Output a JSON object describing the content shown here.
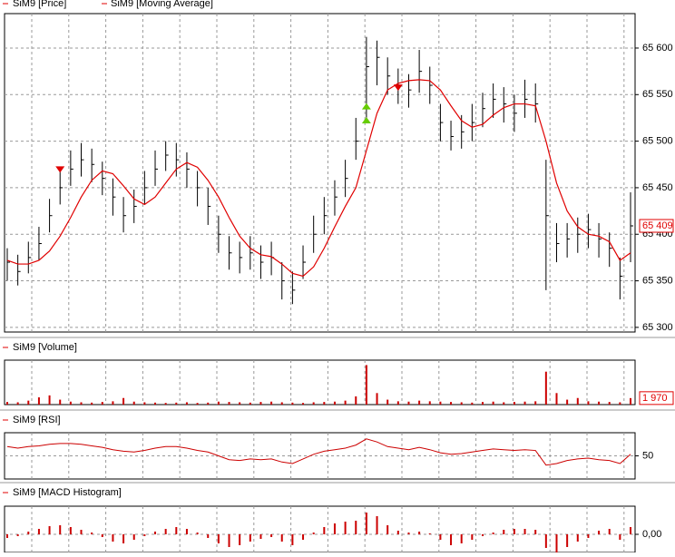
{
  "chart_data": [
    {
      "type": "ohlc",
      "title": "SiM9 [Price]",
      "color": "#000000",
      "high": [
        65385,
        65378,
        65392,
        65408,
        65438,
        65468,
        65490,
        65498,
        65492,
        65478,
        65460,
        65440,
        65448,
        65468,
        65490,
        65500,
        65498,
        65488,
        65468,
        65450,
        65420,
        65398,
        65392,
        65398,
        65388,
        65392,
        65370,
        65360,
        65388,
        65420,
        65440,
        65458,
        65480,
        65525,
        65612,
        65608,
        65590,
        65578,
        65572,
        65598,
        65580,
        65540,
        65522,
        65528,
        65540,
        65552,
        65562,
        65558,
        65550,
        65566,
        65562,
        65480,
        65412,
        65412,
        65418,
        65422,
        65412,
        65402,
        65375,
        65445
      ],
      "low": [
        65350,
        65345,
        65358,
        65372,
        65402,
        65432,
        65452,
        65462,
        65456,
        65442,
        65420,
        65402,
        65412,
        65432,
        65452,
        65468,
        65462,
        65450,
        65430,
        65410,
        65380,
        65362,
        65358,
        65362,
        65352,
        65356,
        65330,
        65325,
        65352,
        65380,
        65400,
        65420,
        65440,
        65480,
        65520,
        65560,
        65550,
        65540,
        65536,
        65552,
        65540,
        65500,
        65490,
        65492,
        65500,
        65515,
        65525,
        65520,
        65510,
        65525,
        65520,
        65340,
        65370,
        65375,
        65380,
        65385,
        65375,
        65365,
        65330,
        65370
      ],
      "close": [
        65370,
        65360,
        65375,
        65390,
        65420,
        65450,
        65470,
        65480,
        65475,
        65460,
        65440,
        65420,
        65430,
        65450,
        65470,
        65485,
        65480,
        65470,
        65450,
        65430,
        65400,
        65380,
        65375,
        65380,
        65370,
        65375,
        65350,
        65340,
        65370,
        65400,
        65420,
        65440,
        65460,
        65500,
        65580,
        65590,
        65570,
        65560,
        65555,
        65575,
        65560,
        65520,
        65505,
        65510,
        65520,
        65535,
        65545,
        65540,
        65530,
        65545,
        65540,
        65420,
        65390,
        65395,
        65400,
        65405,
        65395,
        65385,
        65355,
        65409
      ],
      "series": [
        {
          "name": "SiM9 [Moving Average]",
          "color": "#e00000",
          "values": [
            65372,
            65368,
            65368,
            65372,
            65382,
            65398,
            65418,
            65440,
            65458,
            65468,
            65465,
            65452,
            65438,
            65432,
            65440,
            65455,
            65470,
            65477,
            65472,
            65458,
            65440,
            65418,
            65398,
            65385,
            65378,
            65376,
            65368,
            65358,
            65355,
            65365,
            65385,
            65408,
            65430,
            65450,
            65490,
            65530,
            65555,
            65562,
            65565,
            65566,
            65565,
            65555,
            65538,
            65522,
            65515,
            65518,
            65528,
            65536,
            65540,
            65540,
            65538,
            65500,
            65455,
            65425,
            65408,
            65400,
            65398,
            65392,
            65372,
            65380
          ]
        }
      ],
      "signals": [
        {
          "x": 5,
          "value": 65470,
          "color": "#e00000",
          "direction": "down"
        },
        {
          "x": 34,
          "value": 65537,
          "color": "#66cc00",
          "direction": "up"
        },
        {
          "x": 34,
          "value": 65522,
          "color": "#66cc00",
          "direction": "up"
        },
        {
          "x": 37,
          "value": 65558,
          "color": "#e00000",
          "direction": "down"
        }
      ],
      "last_label": "65 409",
      "ylim": [
        65295,
        65637
      ],
      "yticks": [
        {
          "value": 65300,
          "label": "65 300"
        },
        {
          "value": 65350,
          "label": "65 350"
        },
        {
          "value": 65400,
          "label": "65 400"
        },
        {
          "value": 65450,
          "label": "65 450"
        },
        {
          "value": 65500,
          "label": "65 500"
        },
        {
          "value": 65550,
          "label": "65 550"
        },
        {
          "value": 65600,
          "label": "65 600"
        }
      ],
      "grid": true
    },
    {
      "type": "bar",
      "title": "SiM9 [Volume]",
      "color": "#cc0000",
      "values": [
        800,
        700,
        1200,
        2200,
        2800,
        1500,
        900,
        700,
        600,
        800,
        1000,
        2000,
        900,
        700,
        600,
        500,
        600,
        700,
        500,
        600,
        900,
        800,
        700,
        600,
        800,
        900,
        700,
        600,
        500,
        700,
        800,
        900,
        1200,
        2500,
        12000,
        3500,
        1500,
        1000,
        900,
        1200,
        1000,
        900,
        800,
        700,
        600,
        800,
        900,
        700,
        800,
        900,
        1000,
        10000,
        3500,
        1500,
        2000,
        1000,
        900,
        800,
        700,
        1970
      ],
      "last_label": "1 970",
      "ylim": [
        0,
        13500
      ]
    },
    {
      "type": "line",
      "title": "SiM9 [RSI]",
      "color": "#cc0000",
      "values": [
        62,
        60,
        62,
        63,
        65,
        66,
        66,
        65,
        63,
        61,
        58,
        56,
        55,
        57,
        60,
        62,
        62,
        60,
        57,
        55,
        50,
        45,
        44,
        46,
        45,
        46,
        42,
        40,
        46,
        52,
        56,
        58,
        60,
        64,
        72,
        68,
        62,
        60,
        58,
        61,
        58,
        54,
        52,
        53,
        55,
        57,
        59,
        58,
        57,
        58,
        57,
        38,
        40,
        44,
        46,
        47,
        45,
        44,
        40,
        52
      ],
      "ylim": [
        20,
        80
      ],
      "yticks": [
        50
      ],
      "grid": true
    },
    {
      "type": "bar",
      "title": "SiM9 [MACD Histogram]",
      "color": "#cc0000",
      "values": [
        -4,
        -2,
        3,
        6,
        9,
        10,
        8,
        5,
        2,
        -3,
        -8,
        -10,
        -6,
        -2,
        3,
        6,
        8,
        6,
        2,
        -4,
        -10,
        -14,
        -12,
        -8,
        -5,
        -3,
        -8,
        -12,
        -6,
        2,
        8,
        12,
        14,
        15,
        24,
        20,
        10,
        4,
        2,
        3,
        1,
        -6,
        -12,
        -10,
        -6,
        -2,
        2,
        5,
        6,
        6,
        5,
        -15,
        -20,
        -14,
        -8,
        -4,
        4,
        6,
        -6,
        8
      ],
      "ylim": [
        -20,
        31
      ],
      "yticks": [
        {
          "value": 0,
          "label": "0,00"
        }
      ],
      "grid": true
    }
  ]
}
